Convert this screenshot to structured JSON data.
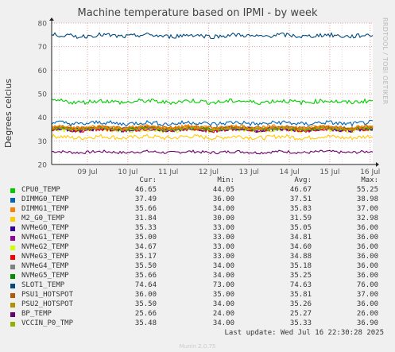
{
  "title": "Machine temperature based on IPMI - by week",
  "side_label": "RRDTOOL / TOBI OETIKER",
  "legend_headers": {
    "cur": "Cur:",
    "min": "Min:",
    "avg": "Avg:",
    "max": "Max:"
  },
  "last_update": "Last update: Wed Jul 16 22:30:28 2025",
  "munin_version": "Munin 2.0.75",
  "chart_data": {
    "type": "line",
    "ylabel": "Degrees celcius",
    "ylim": [
      20,
      80
    ],
    "y_ticks": [
      20,
      30,
      40,
      50,
      60,
      70,
      80
    ],
    "x_ticks": [
      "09 Jul",
      "10 Jul",
      "11 Jul",
      "12 Jul",
      "13 Jul",
      "14 Jul",
      "15 Jul",
      "16 Jul"
    ],
    "series": [
      {
        "name": "CPU0_TEMP",
        "color": "#00cc00",
        "cur": "46.65",
        "min": "44.05",
        "avg": "46.67",
        "max": "55.25",
        "level": 46.67
      },
      {
        "name": "DIMMG0_TEMP",
        "color": "#0066b3",
        "cur": "37.49",
        "min": "36.00",
        "avg": "37.51",
        "max": "38.98",
        "level": 37.51
      },
      {
        "name": "DIMMG1_TEMP",
        "color": "#ff8000",
        "cur": "35.66",
        "min": "34.00",
        "avg": "35.83",
        "max": "37.00",
        "level": 35.83
      },
      {
        "name": "M2_G0_TEMP",
        "color": "#ffcc00",
        "cur": "31.84",
        "min": "30.00",
        "avg": "31.59",
        "max": "32.98",
        "level": 31.59
      },
      {
        "name": "NVMeG0_TEMP",
        "color": "#330099",
        "cur": "35.33",
        "min": "33.00",
        "avg": "35.05",
        "max": "36.00",
        "level": 35.05
      },
      {
        "name": "NVMeG1_TEMP",
        "color": "#990099",
        "cur": "35.00",
        "min": "33.00",
        "avg": "34.81",
        "max": "36.00",
        "level": 34.81
      },
      {
        "name": "NVMeG2_TEMP",
        "color": "#ccff00",
        "cur": "34.67",
        "min": "33.00",
        "avg": "34.60",
        "max": "36.00",
        "level": 34.6
      },
      {
        "name": "NVMeG3_TEMP",
        "color": "#ff0000",
        "cur": "35.17",
        "min": "33.00",
        "avg": "34.88",
        "max": "36.00",
        "level": 34.88
      },
      {
        "name": "NVMeG4_TEMP",
        "color": "#808080",
        "cur": "35.50",
        "min": "34.00",
        "avg": "35.18",
        "max": "36.00",
        "level": 35.18
      },
      {
        "name": "NVMeG5_TEMP",
        "color": "#008f00",
        "cur": "35.66",
        "min": "34.00",
        "avg": "35.25",
        "max": "36.00",
        "level": 35.25
      },
      {
        "name": "SLOT1_TEMP",
        "color": "#00487d",
        "cur": "74.64",
        "min": "73.00",
        "avg": "74.63",
        "max": "76.00",
        "level": 74.63
      },
      {
        "name": "PSU1_HOTSPOT",
        "color": "#b35a00",
        "cur": "36.00",
        "min": "35.00",
        "avg": "35.81",
        "max": "37.00",
        "level": 35.81
      },
      {
        "name": "PSU2_HOTSPOT",
        "color": "#b38f00",
        "cur": "35.50",
        "min": "34.00",
        "avg": "35.26",
        "max": "36.00",
        "level": 35.26
      },
      {
        "name": "BP_TEMP",
        "color": "#6b006b",
        "cur": "25.66",
        "min": "24.00",
        "avg": "25.27",
        "max": "26.00",
        "level": 25.27
      },
      {
        "name": "VCCIN_P0_TMP",
        "color": "#8fb300",
        "cur": "35.48",
        "min": "34.00",
        "avg": "35.33",
        "max": "36.90",
        "level": 35.33
      }
    ]
  }
}
